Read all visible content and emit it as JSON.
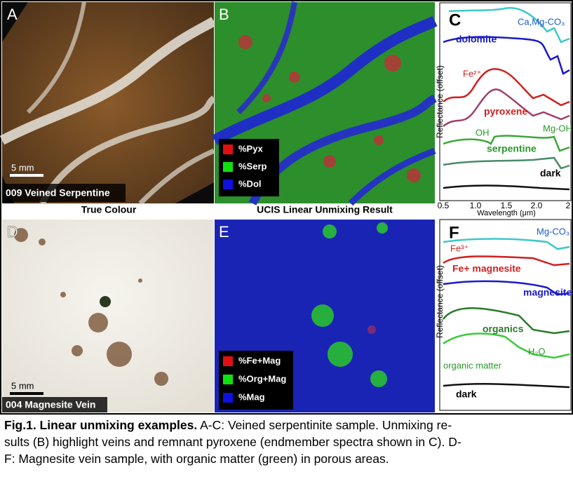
{
  "panels": {
    "a": {
      "label": "A",
      "scale_bar": "5 mm",
      "sample": "009 Veined Serpentine",
      "caption": "True Colour"
    },
    "b": {
      "label": "B",
      "legend": [
        "%Pyx",
        "%Serp",
        "%Dol"
      ],
      "caption": "UCIS Linear Unmixing Result"
    },
    "c": {
      "label": "C",
      "y_axis": "Reflectance (offset)",
      "x_axis": "Wavelength (μm)",
      "x_ticks": [
        "0.5",
        "1.0",
        "1.5",
        "2.0",
        "2"
      ],
      "annotations": [
        "Ca,Mg-CO₃",
        "dolomite",
        "Fe²⁺",
        "pyroxene",
        "OH",
        "Mg-OH",
        "serpentine",
        "dark"
      ]
    },
    "d": {
      "label": "D",
      "scale_bar": "5 mm",
      "sample": "004 Magnesite Vein"
    },
    "e": {
      "label": "E",
      "legend": [
        "%Fe+Mag",
        "%Org+Mag",
        "%Mag"
      ]
    },
    "f": {
      "label": "F",
      "y_axis": "Reflectance (offset)",
      "annotations": [
        "Mg-CO₃",
        "Fe³⁺",
        "Fe+ magnesite",
        "magnesite",
        "organics",
        "H₂O",
        "organic matter",
        "dark"
      ]
    }
  },
  "caption": {
    "bold": "Fig.1. Linear unmixing examples.",
    "lines": [
      " A-C: Veined serpentinite sample. Unmixing re-",
      "sults (B) highlight veins and remnant pyroxene (endmember spectra shown in C). D-",
      "F: Magnesite vein sample, with organic matter (green) in porous areas."
    ]
  }
}
